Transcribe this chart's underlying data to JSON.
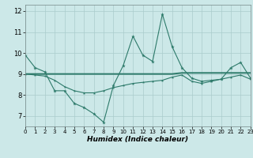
{
  "xlabel": "Humidex (Indice chaleur)",
  "x_values": [
    0,
    1,
    2,
    3,
    4,
    5,
    6,
    7,
    8,
    9,
    10,
    11,
    12,
    13,
    14,
    15,
    16,
    17,
    18,
    19,
    20,
    21,
    22,
    23
  ],
  "line1_y": [
    9.9,
    9.3,
    9.1,
    8.2,
    8.2,
    7.6,
    7.4,
    7.1,
    6.7,
    8.45,
    9.4,
    10.8,
    9.9,
    9.6,
    11.85,
    10.3,
    9.3,
    8.8,
    8.65,
    8.7,
    8.75,
    9.3,
    9.55,
    8.8
  ],
  "line2_y": [
    9.0,
    9.0,
    9.0,
    9.0,
    9.0,
    9.0,
    9.0,
    9.0,
    9.0,
    9.0,
    9.0,
    9.0,
    9.0,
    9.0,
    9.0,
    9.0,
    9.05,
    9.05,
    9.05,
    9.05,
    9.05,
    9.05,
    9.05,
    9.05
  ],
  "line3_y": [
    9.0,
    8.95,
    8.9,
    8.7,
    8.4,
    8.2,
    8.1,
    8.1,
    8.2,
    8.35,
    8.45,
    8.55,
    8.6,
    8.65,
    8.7,
    8.85,
    8.95,
    8.65,
    8.55,
    8.65,
    8.75,
    8.85,
    8.95,
    8.75
  ],
  "line_color": "#2d7a6a",
  "bg_color": "#cce8e8",
  "grid_color": "#aacccc",
  "xlim": [
    0,
    23
  ],
  "ylim": [
    6.5,
    12.3
  ],
  "yticks": [
    7,
    8,
    9,
    10,
    11,
    12
  ],
  "xticks": [
    0,
    1,
    2,
    3,
    4,
    5,
    6,
    7,
    8,
    9,
    10,
    11,
    12,
    13,
    14,
    15,
    16,
    17,
    18,
    19,
    20,
    21,
    22,
    23
  ]
}
